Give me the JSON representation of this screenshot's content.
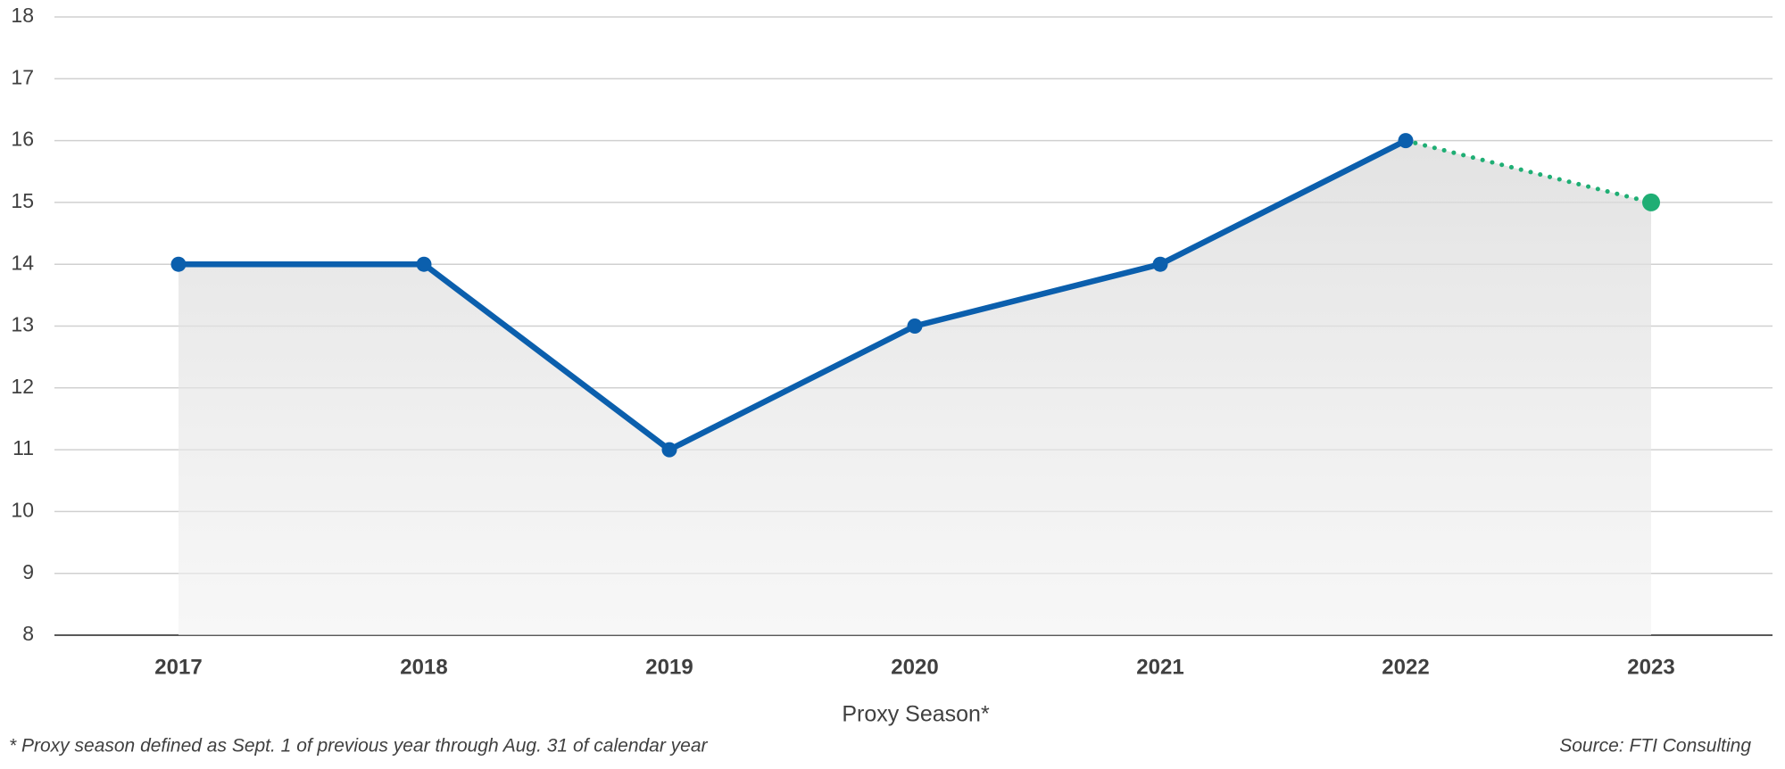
{
  "chart_data": {
    "type": "line",
    "categories": [
      "2017",
      "2018",
      "2019",
      "2020",
      "2021",
      "2022",
      "2023"
    ],
    "series": [
      {
        "color": "#0b5fad",
        "style": "solid",
        "markers": true,
        "values": [
          14,
          14,
          11,
          13,
          14,
          16,
          null
        ]
      },
      {
        "color": "#1fae74",
        "style": "dotted",
        "markers": true,
        "values": [
          null,
          null,
          null,
          null,
          null,
          16,
          15
        ]
      }
    ],
    "ylim": [
      8,
      18
    ],
    "yticks": [
      8,
      9,
      10,
      11,
      12,
      13,
      14,
      15,
      16,
      17,
      18
    ],
    "grid": true,
    "x_label": "Proxy Season*",
    "footnote": "* Proxy season defined as Sept. 1 of previous year through Aug. 31 of calendar year",
    "source": "Source: FTI Consulting"
  }
}
